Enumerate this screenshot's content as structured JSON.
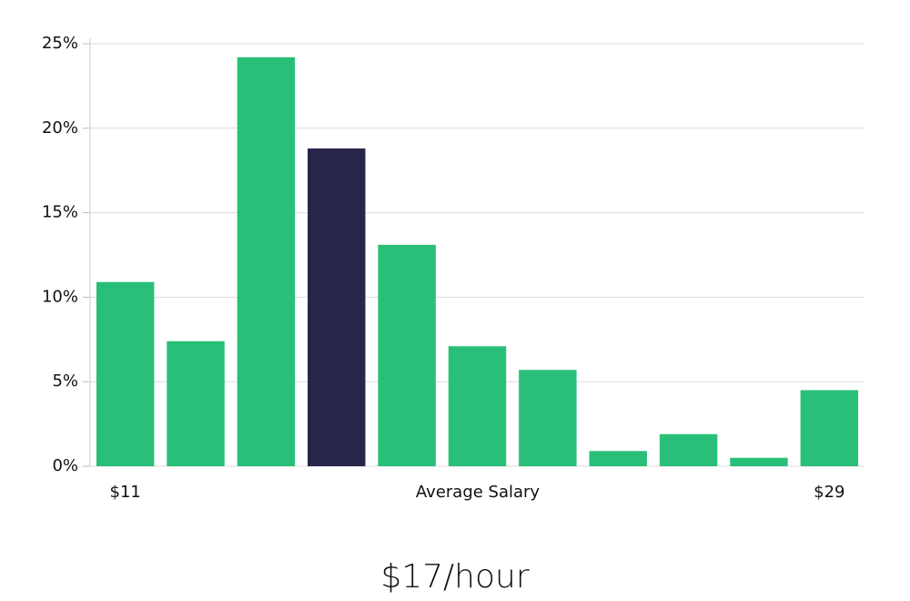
{
  "chart_data": {
    "type": "bar",
    "title": "$17/hour",
    "x_label": "Average Salary",
    "categories": [
      "$11",
      null,
      null,
      null,
      null,
      null,
      null,
      null,
      null,
      null,
      "$29"
    ],
    "values": [
      10.9,
      7.4,
      24.2,
      18.8,
      13.1,
      7.1,
      5.7,
      0.9,
      1.9,
      0.5,
      4.5
    ],
    "colors": [
      "#2abf78",
      "#2abf78",
      "#2abf78",
      "#28254a",
      "#2abf78",
      "#2abf78",
      "#2abf78",
      "#2abf78",
      "#2abf78",
      "#2abf78",
      "#2abf78"
    ],
    "ylim": [
      0,
      25
    ],
    "yticks": [
      {
        "value": 0,
        "label": "0%"
      },
      {
        "value": 5,
        "label": "5%"
      },
      {
        "value": 10,
        "label": "10%"
      },
      {
        "value": 15,
        "label": "15%"
      },
      {
        "value": 20,
        "label": "20%"
      },
      {
        "value": 25,
        "label": "25%"
      }
    ],
    "grid": true
  }
}
